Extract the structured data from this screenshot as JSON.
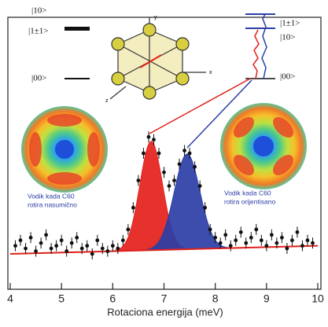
{
  "chart_data": {
    "type": "scatter",
    "xlabel": "Rotaciona energija (meV)",
    "x": [
      4.1,
      4.2,
      4.3,
      4.4,
      4.5,
      4.6,
      4.7,
      4.8,
      4.9,
      5.0,
      5.1,
      5.2,
      5.3,
      5.4,
      5.5,
      5.6,
      5.7,
      5.8,
      5.9,
      6.0,
      6.1,
      6.2,
      6.3,
      6.4,
      6.5,
      6.6,
      6.7,
      6.8,
      6.9,
      7.0,
      7.1,
      7.2,
      7.3,
      7.4,
      7.5,
      7.6,
      7.7,
      7.8,
      7.9,
      8.0,
      8.1,
      8.2,
      8.3,
      8.4,
      8.5,
      8.6,
      8.7,
      8.8,
      8.9,
      9.0,
      9.1,
      9.2,
      9.3,
      9.4,
      9.5,
      9.6,
      9.7,
      9.8,
      9.9
    ],
    "values": [
      16,
      18,
      15,
      19,
      14,
      17,
      20,
      15,
      16,
      18,
      14,
      17,
      19,
      15,
      16,
      13,
      18,
      15,
      14,
      16,
      15,
      18,
      22,
      30,
      40,
      50,
      56,
      55,
      50,
      43,
      38,
      40,
      46,
      51,
      50,
      45,
      38,
      30,
      22,
      19,
      17,
      20,
      16,
      18,
      21,
      17,
      19,
      22,
      18,
      16,
      20,
      17,
      19,
      15,
      18,
      21,
      16,
      18,
      17
    ],
    "color": "#111111",
    "xlim": [
      4,
      10
    ],
    "xticks": [
      4,
      5,
      6,
      7,
      8,
      9,
      10
    ],
    "ylim": [
      0,
      100
    ],
    "baseline": [
      13,
      16
    ],
    "baseline_color": "#e0201a",
    "peaks": [
      {
        "center": 6.75,
        "amplitude": 40,
        "width": 0.22,
        "color": "#e4201b"
      },
      {
        "center": 7.45,
        "amplitude": 35,
        "width": 0.25,
        "color": "#2b3ea6"
      }
    ],
    "levels_left": [
      "|10>",
      "|1±1>",
      "|00>"
    ],
    "levels_right": [
      "|1±1>",
      "|10>",
      "|00>"
    ],
    "molecule_axes": [
      "y",
      "x",
      "z"
    ],
    "annotations": [
      {
        "line1": "Vodik kada C60",
        "line2": "rotira nasumično"
      },
      {
        "line1": "Vodik kada C60",
        "line2": "rotira orijentisano"
      }
    ]
  }
}
